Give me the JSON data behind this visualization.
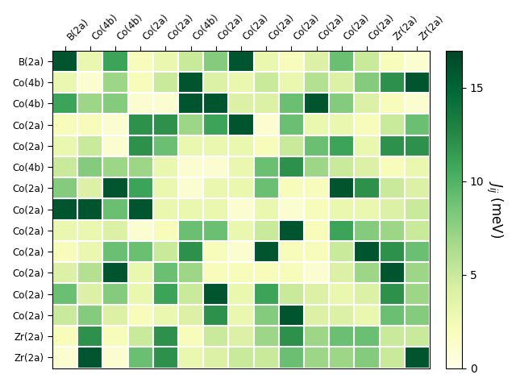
{
  "labels": [
    "B(2a)",
    "Co(4b)",
    "Co(4b)",
    "Co(2a)",
    "Co(2a)",
    "Co(4b)",
    "Co(2a)",
    "Co(2a)",
    "Co(2a)",
    "Co(2a)",
    "Co(2a)",
    "Co(2a)",
    "Co(2a)",
    "Zr(2a)",
    "Zr(2a)"
  ],
  "col_labels": [
    "B(2a)",
    "Co(4b)",
    "Co(4b)",
    "Co(2a)",
    "Co(2a)",
    "Co(4b)",
    "Co(2a)",
    "Co(2a)",
    "Co(2a)",
    "Co(2a)",
    "Co(2a)",
    "Co(2a)",
    "Co(2a)",
    "Zr(2a)",
    "Zr(2a)"
  ],
  "matrix": [
    [
      16,
      3,
      11,
      2,
      3,
      5,
      8,
      16,
      3,
      2,
      4,
      9,
      5,
      2,
      1
    ],
    [
      3,
      1,
      7,
      2,
      5,
      16,
      4,
      3,
      5,
      3,
      6,
      4,
      8,
      12,
      16
    ],
    [
      11,
      7,
      8,
      1,
      1,
      16,
      16,
      4,
      4,
      9,
      16,
      8,
      4,
      2,
      1
    ],
    [
      2,
      2,
      1,
      12,
      12,
      7,
      11,
      16,
      1,
      9,
      3,
      3,
      2,
      5,
      9
    ],
    [
      3,
      5,
      1,
      12,
      9,
      3,
      3,
      3,
      2,
      5,
      9,
      11,
      3,
      12,
      12
    ],
    [
      5,
      8,
      7,
      7,
      3,
      1,
      1,
      3,
      9,
      12,
      7,
      5,
      4,
      2,
      3
    ],
    [
      8,
      4,
      16,
      11,
      3,
      1,
      3,
      3,
      9,
      2,
      2,
      16,
      12,
      5,
      4
    ],
    [
      16,
      16,
      9,
      16,
      3,
      3,
      3,
      1,
      3,
      1,
      2,
      3,
      3,
      4,
      5
    ],
    [
      3,
      3,
      4,
      1,
      2,
      9,
      9,
      3,
      5,
      16,
      2,
      11,
      8,
      7,
      5
    ],
    [
      2,
      3,
      9,
      9,
      5,
      12,
      2,
      1,
      16,
      2,
      2,
      5,
      16,
      12,
      9
    ],
    [
      4,
      6,
      16,
      3,
      9,
      7,
      2,
      2,
      2,
      2,
      1,
      4,
      7,
      16,
      7
    ],
    [
      9,
      4,
      8,
      3,
      11,
      5,
      16,
      3,
      11,
      5,
      4,
      3,
      4,
      12,
      7
    ],
    [
      5,
      8,
      4,
      2,
      3,
      4,
      12,
      3,
      8,
      16,
      4,
      4,
      3,
      9,
      8
    ],
    [
      2,
      12,
      2,
      5,
      12,
      2,
      5,
      4,
      7,
      12,
      7,
      9,
      9,
      5,
      5
    ],
    [
      1,
      16,
      1,
      9,
      12,
      3,
      4,
      5,
      5,
      9,
      7,
      7,
      8,
      5,
      16
    ]
  ],
  "vmin": 0,
  "vmax": 17,
  "cmap": "YlGn",
  "colorbar_label": "$J_{ij}$ (meV)",
  "colorbar_ticks": [
    0,
    5,
    10,
    15
  ],
  "figsize": [
    6.4,
    4.8
  ],
  "dpi": 100
}
